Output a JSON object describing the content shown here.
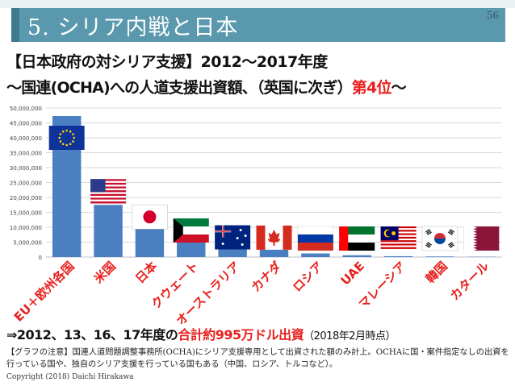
{
  "slide": {
    "title": "5. シリア内戦と日本",
    "page_number": "56",
    "colors": {
      "title_bar": "#5a98ad",
      "bar": "#4a7fc1",
      "highlight": "#e8201d"
    }
  },
  "headline": {
    "line1": "【日本政府の対シリア支援】2012～2017年度",
    "line2_prefix": "～国連(OCHA)への人道支援出資額、（英国に次ぎ）",
    "line2_highlight": "第4位",
    "line2_suffix": "～"
  },
  "summary": {
    "prefix": "⇒2012、13、16、17年度の",
    "highlight": "合計約995万ドル出資",
    "date": "（2018年2月時点）"
  },
  "note": "【グラフの注意】国連人道問題調整事務所(OCHA)にシリア支援専用として出資された額のみ計上。OCHAに国・案件指定なしの出資を行っている国や、独自のシリア支援を行っている国もある（中国、ロシア、トルコなど）。",
  "copyright": "Copyright (2018) Daichi Hirakawa",
  "chart_data": {
    "type": "bar",
    "title": "",
    "xlabel": "",
    "ylabel": "",
    "ylim": [
      0,
      50000000
    ],
    "yticks": [
      0,
      5000000,
      10000000,
      15000000,
      20000000,
      25000000,
      30000000,
      35000000,
      40000000,
      45000000,
      50000000
    ],
    "ytick_labels": [
      "0",
      "5,000,000",
      "10,000,000",
      "15,000,000",
      "20,000,000",
      "25,000,000",
      "30,000,000",
      "35,000,000",
      "40,000,000",
      "45,000,000",
      "50,000,000"
    ],
    "grid": true,
    "categories": [
      "EU＋欧州各国",
      "米国",
      "日本",
      "クウェート",
      "オーストラリア",
      "カナダ",
      "ロシア",
      "UAE",
      "マレーシア",
      "韓国",
      "カタール"
    ],
    "values": [
      47300000,
      17500000,
      9950000,
      5400000,
      3100000,
      3000000,
      1200000,
      600000,
      300000,
      200000,
      100000
    ],
    "flags": [
      "eu-flag",
      "us-flag",
      "japan-flag",
      "kuwait-flag",
      "australia-flag",
      "canada-flag",
      "russia-flag",
      "uae-flag",
      "malaysia-flag",
      "korea-flag",
      "qatar-flag"
    ]
  }
}
